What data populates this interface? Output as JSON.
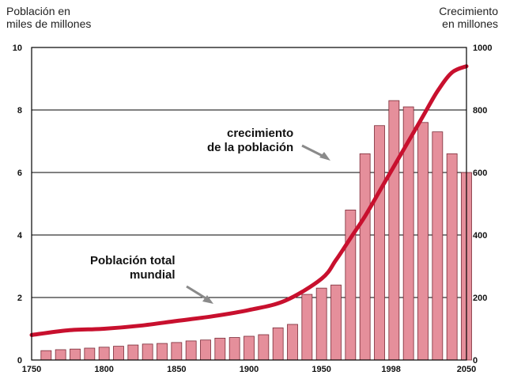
{
  "chart_data": {
    "type": "bar+line",
    "left_axis_title": "Población en\nmiles de millones",
    "right_axis_title": "Crecimiento\nen millones",
    "left_ticks": [
      "0",
      "2",
      "4",
      "6",
      "8",
      "10"
    ],
    "right_ticks": [
      "0",
      "200",
      "400",
      "600",
      "800",
      "1000"
    ],
    "x_ticks": [
      "1750",
      "1800",
      "1850",
      "1900",
      "1950",
      "1998",
      "2050"
    ],
    "ylim_left": [
      0,
      10
    ],
    "ylim_right": [
      0,
      1000
    ],
    "xlim": [
      1750,
      2050
    ],
    "grid": true,
    "annotations": [
      "crecimiento\nde la población",
      "Población total\nmundial"
    ],
    "colors": {
      "bars": "#e58f9b",
      "bar_edge": "#7a2a36",
      "line": "#c8102e",
      "grid": "#000000"
    },
    "bar_series": {
      "axis": "right",
      "x": [
        1760,
        1770,
        1780,
        1790,
        1800,
        1810,
        1820,
        1830,
        1840,
        1850,
        1860,
        1870,
        1880,
        1890,
        1900,
        1910,
        1920,
        1930,
        1940,
        1950,
        1960,
        1970,
        1980,
        1990,
        2000,
        2010,
        2020,
        2030,
        2040,
        2050
      ],
      "values": [
        30,
        33,
        35,
        38,
        41,
        44,
        48,
        51,
        53,
        56,
        61,
        64,
        70,
        72,
        76,
        81,
        103,
        114,
        210,
        230,
        240,
        480,
        660,
        750,
        830,
        810,
        760,
        730,
        660,
        600
      ]
    },
    "line_series": {
      "axis": "left",
      "x": [
        1750,
        1775,
        1800,
        1825,
        1850,
        1875,
        1900,
        1925,
        1950,
        1960,
        1970,
        1980,
        1990,
        2000,
        2010,
        2020,
        2030,
        2040,
        2050
      ],
      "values": [
        0.8,
        0.95,
        1.0,
        1.1,
        1.25,
        1.4,
        1.6,
        1.9,
        2.6,
        3.2,
        3.9,
        4.6,
        5.4,
        6.2,
        7.0,
        7.8,
        8.6,
        9.2,
        9.4
      ]
    }
  }
}
